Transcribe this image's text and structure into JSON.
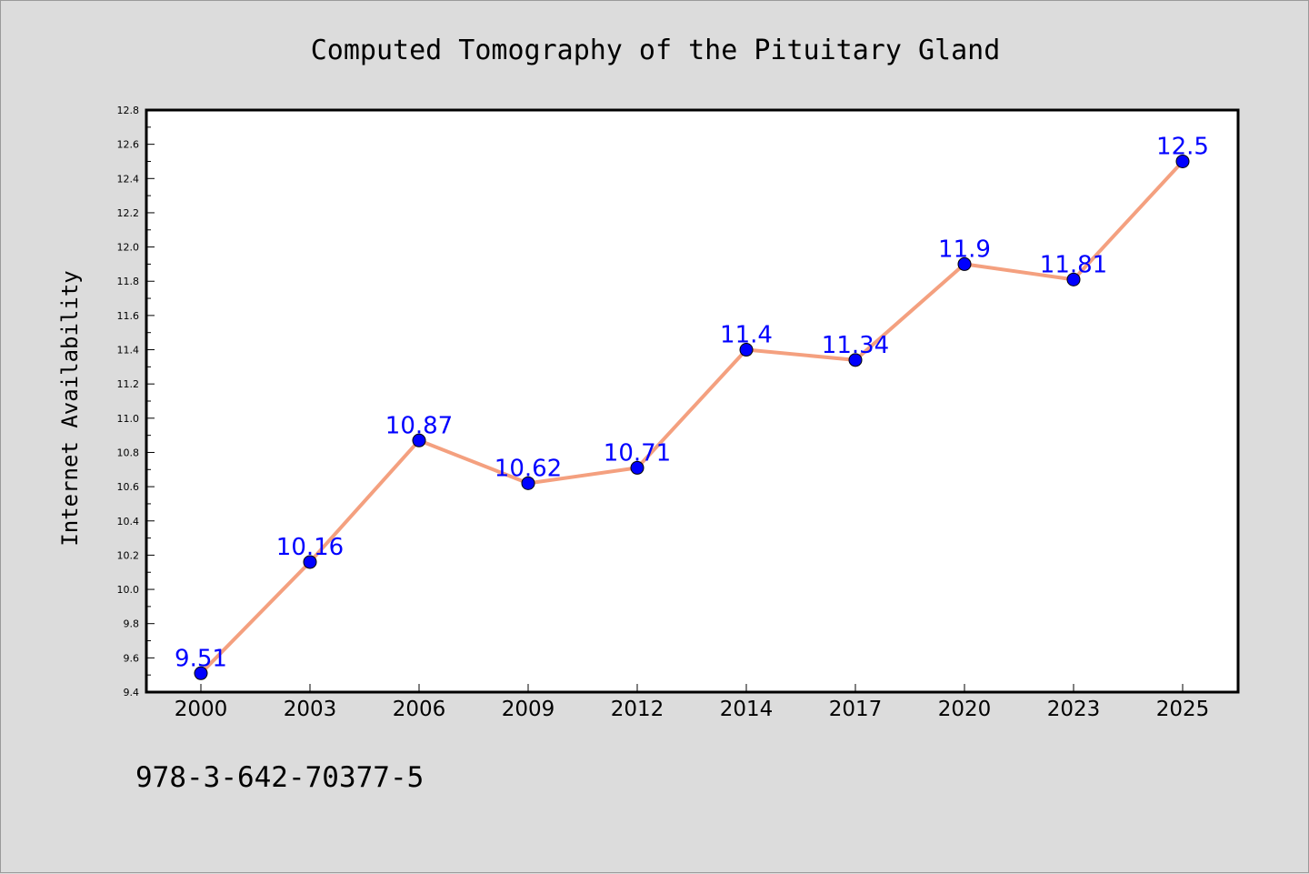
{
  "chart_data": {
    "type": "line",
    "title": "Computed Tomography of the Pituitary Gland",
    "xlabel": "",
    "ylabel": "Internet Availability",
    "categories": [
      "2000",
      "2003",
      "2006",
      "2009",
      "2012",
      "2014",
      "2017",
      "2020",
      "2023",
      "2025"
    ],
    "series": [
      {
        "values": [
          9.51,
          10.16,
          10.87,
          10.62,
          10.71,
          11.4,
          11.34,
          11.9,
          11.81,
          12.5
        ],
        "labels": [
          "9.51",
          "10.16",
          "10.87",
          "10.62",
          "10.71",
          "11.4",
          "11.34",
          "11.9",
          "11.81",
          "12.5"
        ],
        "line_color": "#f4a07f",
        "marker_color": "#0000ff",
        "label_color": "#0000ff"
      }
    ],
    "ylim": [
      9.4,
      12.8
    ],
    "yticks": [
      "9.4",
      "9.6",
      "9.8",
      "10.0",
      "10.2",
      "10.4",
      "10.6",
      "10.8",
      "11.0",
      "11.2",
      "11.4",
      "11.6",
      "11.8",
      "12.0",
      "12.2",
      "12.4",
      "12.6",
      "12.8"
    ],
    "grid": false,
    "legend": "none",
    "background_color": "#dcdcdc",
    "plot_background_color": "#ffffff"
  },
  "footer": {
    "isbn": "978-3-642-70377-5"
  }
}
